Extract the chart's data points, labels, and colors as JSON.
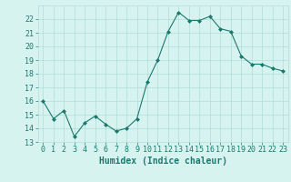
{
  "x": [
    0,
    1,
    2,
    3,
    4,
    5,
    6,
    7,
    8,
    9,
    10,
    11,
    12,
    13,
    14,
    15,
    16,
    17,
    18,
    19,
    20,
    21,
    22,
    23
  ],
  "y": [
    16.0,
    14.7,
    15.3,
    13.4,
    14.4,
    14.9,
    14.3,
    13.8,
    14.0,
    14.7,
    17.4,
    19.0,
    21.1,
    22.5,
    21.9,
    21.9,
    22.2,
    21.3,
    21.1,
    19.3,
    18.7,
    18.7,
    18.4,
    18.2
  ],
  "line_color": "#1a7a6e",
  "marker": "D",
  "marker_size": 2,
  "bg_color": "#d7f3f0",
  "grid_color": "#b0ddd8",
  "tick_color": "#1a7a6e",
  "label_color": "#1a7a6e",
  "xlabel": "Humidex (Indice chaleur)",
  "xlim": [
    -0.5,
    23.5
  ],
  "ylim": [
    13,
    23
  ],
  "yticks": [
    13,
    14,
    15,
    16,
    17,
    18,
    19,
    20,
    21,
    22
  ],
  "xticks": [
    0,
    1,
    2,
    3,
    4,
    5,
    6,
    7,
    8,
    9,
    10,
    11,
    12,
    13,
    14,
    15,
    16,
    17,
    18,
    19,
    20,
    21,
    22,
    23
  ],
  "xtick_labels": [
    "0",
    "1",
    "2",
    "3",
    "4",
    "5",
    "6",
    "7",
    "8",
    "9",
    "10",
    "11",
    "12",
    "13",
    "14",
    "15",
    "16",
    "17",
    "18",
    "19",
    "20",
    "21",
    "22",
    "23"
  ],
  "font_size": 6,
  "xlabel_font_size": 7
}
